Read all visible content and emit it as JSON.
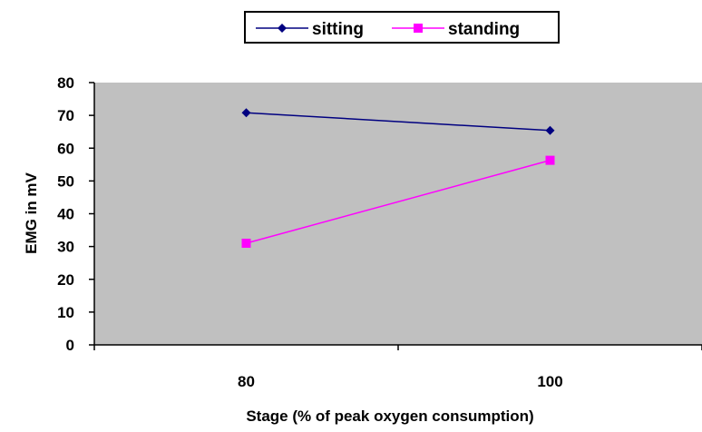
{
  "chart_data": {
    "type": "line",
    "x": [
      "80",
      "100"
    ],
    "xlabel": "Stage (% of peak oxygen consumption)",
    "ylabel": "EMG in mV",
    "ylim": [
      0,
      80
    ],
    "yticks": [
      "0",
      "10",
      "20",
      "30",
      "40",
      "50",
      "60",
      "70",
      "80"
    ],
    "grid": false,
    "plot_background": "#c0c0c0",
    "legend_position": "top",
    "series": [
      {
        "name": "sitting",
        "values": [
          70.8,
          65.4
        ],
        "color": "#000080",
        "marker": "diamond"
      },
      {
        "name": "standing",
        "values": [
          31.0,
          56.3
        ],
        "color": "#ff00ff",
        "marker": "square"
      }
    ]
  }
}
